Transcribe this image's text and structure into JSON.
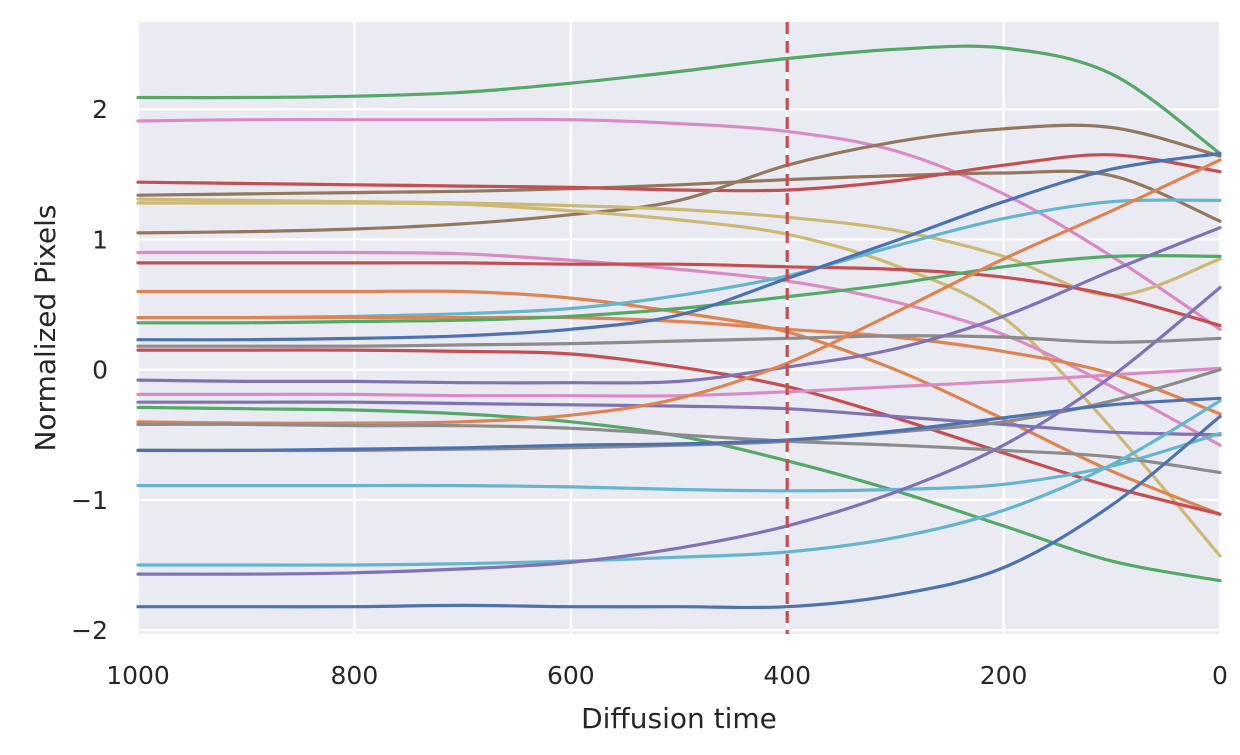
{
  "chart_data": {
    "type": "line",
    "title": "",
    "xlabel": "Diffusion time",
    "ylabel": "Normalized Pixels",
    "xlim": [
      1000,
      0
    ],
    "ylim": [
      -2.03,
      2.67
    ],
    "x_inverted": true,
    "x_ticks": [
      1000,
      800,
      600,
      400,
      200,
      0
    ],
    "x_tick_labels": [
      "1000",
      "800",
      "600",
      "400",
      "200",
      "0"
    ],
    "y_ticks": [
      2,
      1,
      0,
      -1,
      -2
    ],
    "y_tick_labels": [
      "2",
      "1",
      "0",
      "−1",
      "−2"
    ],
    "grid": true,
    "background": "#eaeaf2",
    "vline": {
      "x": 400,
      "color": "#c44e52",
      "style": "dashed"
    },
    "x": [
      1000,
      900,
      800,
      700,
      600,
      500,
      400,
      300,
      200,
      100,
      0
    ],
    "series": [
      {
        "color": "#55a868",
        "values": [
          2.09,
          2.09,
          2.1,
          2.13,
          2.2,
          2.29,
          2.39,
          2.46,
          2.47,
          2.27,
          1.66
        ]
      },
      {
        "color": "#da8bc3",
        "values": [
          1.91,
          1.92,
          1.92,
          1.92,
          1.92,
          1.89,
          1.83,
          1.68,
          1.35,
          0.87,
          0.31
        ]
      },
      {
        "color": "#937860",
        "values": [
          1.34,
          1.35,
          1.36,
          1.37,
          1.39,
          1.42,
          1.46,
          1.49,
          1.51,
          1.49,
          1.14
        ]
      },
      {
        "color": "#c44e52",
        "values": [
          1.44,
          1.43,
          1.42,
          1.41,
          1.4,
          1.38,
          1.38,
          1.45,
          1.57,
          1.65,
          1.52
        ]
      },
      {
        "color": "#937860",
        "values": [
          1.05,
          1.06,
          1.08,
          1.12,
          1.19,
          1.3,
          1.57,
          1.75,
          1.85,
          1.86,
          1.64
        ]
      },
      {
        "color": "#ccb974",
        "values": [
          1.31,
          1.3,
          1.29,
          1.28,
          1.26,
          1.23,
          1.17,
          1.07,
          0.87,
          0.57,
          0.85
        ]
      },
      {
        "color": "#ccb974",
        "values": [
          1.28,
          1.28,
          1.28,
          1.27,
          1.22,
          1.15,
          1.04,
          0.8,
          0.4,
          -0.45,
          -1.43
        ]
      },
      {
        "color": "#da8bc3",
        "values": [
          0.9,
          0.9,
          0.9,
          0.89,
          0.84,
          0.77,
          0.68,
          0.52,
          0.27,
          -0.13,
          -0.58
        ]
      },
      {
        "color": "#c44e52",
        "values": [
          0.82,
          0.82,
          0.82,
          0.82,
          0.81,
          0.81,
          0.79,
          0.77,
          0.71,
          0.57,
          0.34
        ]
      },
      {
        "color": "#dd8452",
        "values": [
          0.6,
          0.6,
          0.6,
          0.6,
          0.55,
          0.44,
          0.29,
          0.0,
          -0.38,
          -0.78,
          -1.11
        ]
      },
      {
        "color": "#64b5cd",
        "values": [
          0.4,
          0.4,
          0.41,
          0.43,
          0.47,
          0.57,
          0.72,
          0.95,
          1.16,
          1.29,
          1.3
        ]
      },
      {
        "color": "#dd8452",
        "values": [
          0.4,
          0.4,
          0.4,
          0.4,
          0.4,
          0.37,
          0.31,
          0.25,
          0.14,
          -0.03,
          -0.34
        ]
      },
      {
        "color": "#55a868",
        "values": [
          0.36,
          0.36,
          0.37,
          0.38,
          0.41,
          0.47,
          0.56,
          0.66,
          0.79,
          0.87,
          0.87
        ]
      },
      {
        "color": "#4c72b0",
        "values": [
          0.23,
          0.23,
          0.24,
          0.26,
          0.31,
          0.42,
          0.7,
          0.99,
          1.29,
          1.54,
          1.66
        ]
      },
      {
        "color": "#8c8c8c",
        "values": [
          0.18,
          0.18,
          0.18,
          0.19,
          0.2,
          0.22,
          0.24,
          0.26,
          0.25,
          0.21,
          0.24
        ]
      },
      {
        "color": "#c44e52",
        "values": [
          0.15,
          0.15,
          0.15,
          0.14,
          0.12,
          0.02,
          -0.13,
          -0.37,
          -0.64,
          -0.9,
          -1.11
        ]
      },
      {
        "color": "#8172b3",
        "values": [
          -0.08,
          -0.09,
          -0.09,
          -0.1,
          -0.1,
          -0.09,
          0.02,
          0.16,
          0.41,
          0.76,
          1.09
        ]
      },
      {
        "color": "#da8bc3",
        "values": [
          -0.19,
          -0.19,
          -0.19,
          -0.2,
          -0.2,
          -0.2,
          -0.17,
          -0.13,
          -0.09,
          -0.04,
          0.01
        ]
      },
      {
        "color": "#8172b3",
        "values": [
          -0.25,
          -0.25,
          -0.25,
          -0.26,
          -0.27,
          -0.28,
          -0.3,
          -0.36,
          -0.42,
          -0.48,
          -0.5
        ]
      },
      {
        "color": "#55a868",
        "values": [
          -0.29,
          -0.3,
          -0.31,
          -0.34,
          -0.4,
          -0.51,
          -0.7,
          -0.93,
          -1.2,
          -1.47,
          -1.62
        ]
      },
      {
        "color": "#dd8452",
        "values": [
          -0.4,
          -0.41,
          -0.41,
          -0.4,
          -0.35,
          -0.22,
          0.05,
          0.44,
          0.85,
          1.22,
          1.61
        ]
      },
      {
        "color": "#8c8c8c",
        "values": [
          -0.42,
          -0.42,
          -0.43,
          -0.43,
          -0.45,
          -0.5,
          -0.55,
          -0.58,
          -0.62,
          -0.67,
          -0.79
        ]
      },
      {
        "color": "#8c8c8c",
        "values": [
          -0.62,
          -0.62,
          -0.62,
          -0.61,
          -0.6,
          -0.58,
          -0.55,
          -0.48,
          -0.4,
          -0.24,
          0.0
        ]
      },
      {
        "color": "#4c72b0",
        "values": [
          -0.62,
          -0.62,
          -0.61,
          -0.6,
          -0.58,
          -0.57,
          -0.54,
          -0.47,
          -0.37,
          -0.27,
          -0.22
        ]
      },
      {
        "color": "#64b5cd",
        "values": [
          -0.89,
          -0.89,
          -0.89,
          -0.89,
          -0.9,
          -0.92,
          -0.93,
          -0.92,
          -0.88,
          -0.74,
          -0.49
        ]
      },
      {
        "color": "#64b5cd",
        "values": [
          -1.5,
          -1.5,
          -1.5,
          -1.49,
          -1.47,
          -1.44,
          -1.4,
          -1.29,
          -1.08,
          -0.73,
          -0.24
        ]
      },
      {
        "color": "#8172b3",
        "values": [
          -1.57,
          -1.57,
          -1.56,
          -1.53,
          -1.48,
          -1.37,
          -1.2,
          -0.94,
          -0.58,
          -0.05,
          0.63
        ]
      },
      {
        "color": "#4c72b0",
        "values": [
          -1.82,
          -1.82,
          -1.82,
          -1.81,
          -1.82,
          -1.82,
          -1.82,
          -1.73,
          -1.52,
          -1.04,
          -0.36
        ]
      }
    ]
  }
}
